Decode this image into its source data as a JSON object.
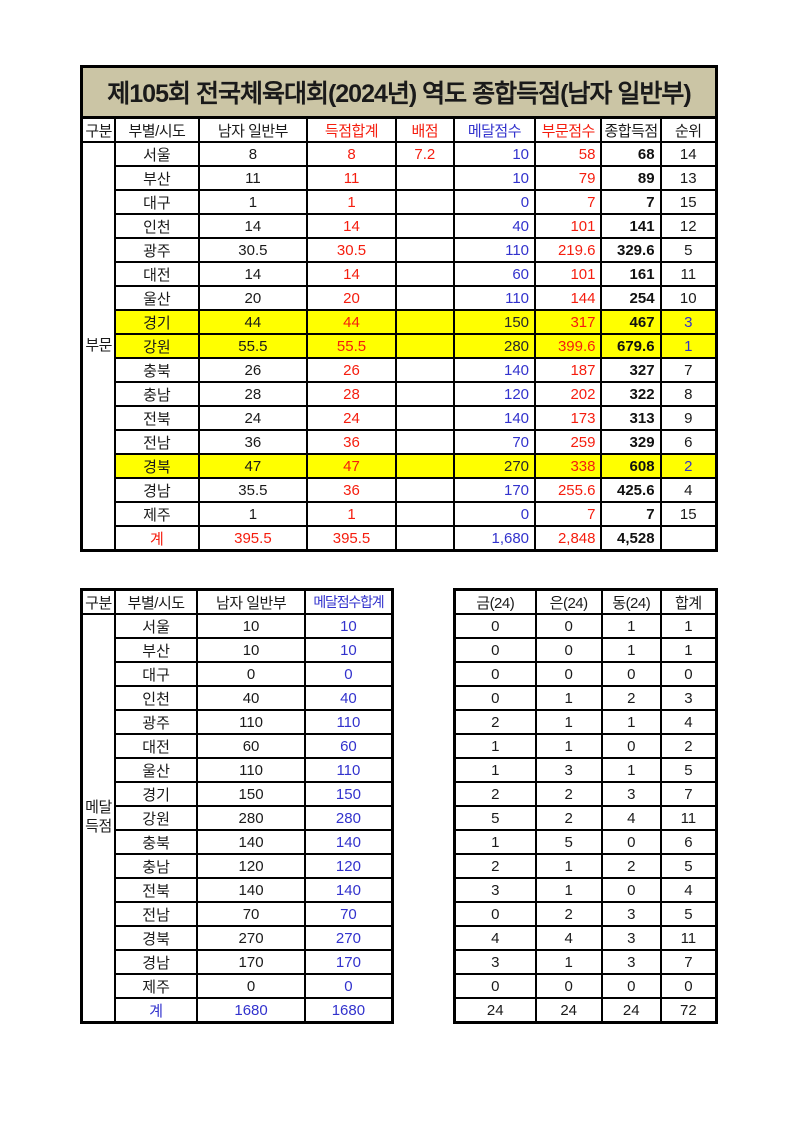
{
  "title": "제105회 전국체육대회(2024년) 역도 종합득점(남자 일반부)",
  "colors": {
    "title_background": "#CBC5A5",
    "accent_red": "#F51D0E",
    "accent_blue": "#3232CD",
    "row_highlight_yellow": "#FFFF00"
  },
  "table1": {
    "group_label": "부문",
    "headers": [
      {
        "label": "구분",
        "color": ""
      },
      {
        "label": "부별/시도",
        "color": ""
      },
      {
        "label": "남자 일반부",
        "color": ""
      },
      {
        "label": "득점합계",
        "color": "red"
      },
      {
        "label": "배점",
        "color": "red"
      },
      {
        "label": "메달점수",
        "color": "blue"
      },
      {
        "label": "부문점수",
        "color": "red"
      },
      {
        "label": "종합득점",
        "color": ""
      },
      {
        "label": "순위",
        "color": ""
      }
    ],
    "rows": [
      {
        "sido": "서울",
        "mens": "8",
        "score_sum": "8",
        "baejeom": "7.2",
        "medal": "10",
        "bumun": "58",
        "total": "68",
        "rank": "14",
        "highlight": false
      },
      {
        "sido": "부산",
        "mens": "11",
        "score_sum": "11",
        "baejeom": "",
        "medal": "10",
        "bumun": "79",
        "total": "89",
        "rank": "13",
        "highlight": false
      },
      {
        "sido": "대구",
        "mens": "1",
        "score_sum": "1",
        "baejeom": "",
        "medal": "0",
        "bumun": "7",
        "total": "7",
        "rank": "15",
        "highlight": false
      },
      {
        "sido": "인천",
        "mens": "14",
        "score_sum": "14",
        "baejeom": "",
        "medal": "40",
        "bumun": "101",
        "total": "141",
        "rank": "12",
        "highlight": false
      },
      {
        "sido": "광주",
        "mens": "30.5",
        "score_sum": "30.5",
        "baejeom": "",
        "medal": "110",
        "bumun": "219.6",
        "total": "329.6",
        "rank": "5",
        "highlight": false
      },
      {
        "sido": "대전",
        "mens": "14",
        "score_sum": "14",
        "baejeom": "",
        "medal": "60",
        "bumun": "101",
        "total": "161",
        "rank": "11",
        "highlight": false
      },
      {
        "sido": "울산",
        "mens": "20",
        "score_sum": "20",
        "baejeom": "",
        "medal": "110",
        "bumun": "144",
        "total": "254",
        "rank": "10",
        "highlight": false
      },
      {
        "sido": "경기",
        "mens": "44",
        "score_sum": "44",
        "baejeom": "",
        "medal": "150",
        "bumun": "317",
        "total": "467",
        "rank": "3",
        "highlight": true
      },
      {
        "sido": "강원",
        "mens": "55.5",
        "score_sum": "55.5",
        "baejeom": "",
        "medal": "280",
        "bumun": "399.6",
        "total": "679.6",
        "rank": "1",
        "highlight": true
      },
      {
        "sido": "충북",
        "mens": "26",
        "score_sum": "26",
        "baejeom": "",
        "medal": "140",
        "bumun": "187",
        "total": "327",
        "rank": "7",
        "highlight": false
      },
      {
        "sido": "충남",
        "mens": "28",
        "score_sum": "28",
        "baejeom": "",
        "medal": "120",
        "bumun": "202",
        "total": "322",
        "rank": "8",
        "highlight": false
      },
      {
        "sido": "전북",
        "mens": "24",
        "score_sum": "24",
        "baejeom": "",
        "medal": "140",
        "bumun": "173",
        "total": "313",
        "rank": "9",
        "highlight": false
      },
      {
        "sido": "전남",
        "mens": "36",
        "score_sum": "36",
        "baejeom": "",
        "medal": "70",
        "bumun": "259",
        "total": "329",
        "rank": "6",
        "highlight": false
      },
      {
        "sido": "경북",
        "mens": "47",
        "score_sum": "47",
        "baejeom": "",
        "medal": "270",
        "bumun": "338",
        "total": "608",
        "rank": "2",
        "highlight": true
      },
      {
        "sido": "경남",
        "mens": "35.5",
        "score_sum": "36",
        "baejeom": "",
        "medal": "170",
        "bumun": "255.6",
        "total": "425.6",
        "rank": "4",
        "highlight": false
      },
      {
        "sido": "제주",
        "mens": "1",
        "score_sum": "1",
        "baejeom": "",
        "medal": "0",
        "bumun": "7",
        "total": "7",
        "rank": "15",
        "highlight": false
      }
    ],
    "total_row": {
      "sido": "계",
      "mens": "395.5",
      "score_sum": "395.5",
      "baejeom": "",
      "medal": "1,680",
      "bumun": "2,848",
      "total": "4,528",
      "rank": ""
    }
  },
  "table2": {
    "group_label_lines": [
      "메달",
      "득점"
    ],
    "headers": [
      {
        "label": "구분",
        "color": ""
      },
      {
        "label": "부별/시도",
        "color": ""
      },
      {
        "label": "남자 일반부",
        "color": ""
      },
      {
        "label": "메달점수합계",
        "color": "blue",
        "tight": true
      }
    ],
    "rows": [
      {
        "sido": "서울",
        "mens": "10",
        "medal_sum": "10"
      },
      {
        "sido": "부산",
        "mens": "10",
        "medal_sum": "10"
      },
      {
        "sido": "대구",
        "mens": "0",
        "medal_sum": "0"
      },
      {
        "sido": "인천",
        "mens": "40",
        "medal_sum": "40"
      },
      {
        "sido": "광주",
        "mens": "110",
        "medal_sum": "110"
      },
      {
        "sido": "대전",
        "mens": "60",
        "medal_sum": "60"
      },
      {
        "sido": "울산",
        "mens": "110",
        "medal_sum": "110"
      },
      {
        "sido": "경기",
        "mens": "150",
        "medal_sum": "150"
      },
      {
        "sido": "강원",
        "mens": "280",
        "medal_sum": "280"
      },
      {
        "sido": "충북",
        "mens": "140",
        "medal_sum": "140"
      },
      {
        "sido": "충남",
        "mens": "120",
        "medal_sum": "120"
      },
      {
        "sido": "전북",
        "mens": "140",
        "medal_sum": "140"
      },
      {
        "sido": "전남",
        "mens": "70",
        "medal_sum": "70"
      },
      {
        "sido": "경북",
        "mens": "270",
        "medal_sum": "270"
      },
      {
        "sido": "경남",
        "mens": "170",
        "medal_sum": "170"
      },
      {
        "sido": "제주",
        "mens": "0",
        "medal_sum": "0"
      }
    ],
    "total_row": {
      "sido": "계",
      "mens": "1680",
      "medal_sum": "1680"
    }
  },
  "table3": {
    "headers": [
      {
        "label": "금(24)"
      },
      {
        "label": "은(24)"
      },
      {
        "label": "동(24)"
      },
      {
        "label": "합계"
      }
    ],
    "rows": [
      {
        "gold": "0",
        "silver": "0",
        "bronze": "1",
        "total": "1"
      },
      {
        "gold": "0",
        "silver": "0",
        "bronze": "1",
        "total": "1"
      },
      {
        "gold": "0",
        "silver": "0",
        "bronze": "0",
        "total": "0"
      },
      {
        "gold": "0",
        "silver": "1",
        "bronze": "2",
        "total": "3"
      },
      {
        "gold": "2",
        "silver": "1",
        "bronze": "1",
        "total": "4"
      },
      {
        "gold": "1",
        "silver": "1",
        "bronze": "0",
        "total": "2"
      },
      {
        "gold": "1",
        "silver": "3",
        "bronze": "1",
        "total": "5"
      },
      {
        "gold": "2",
        "silver": "2",
        "bronze": "3",
        "total": "7"
      },
      {
        "gold": "5",
        "silver": "2",
        "bronze": "4",
        "total": "11"
      },
      {
        "gold": "1",
        "silver": "5",
        "bronze": "0",
        "total": "6"
      },
      {
        "gold": "2",
        "silver": "1",
        "bronze": "2",
        "total": "5"
      },
      {
        "gold": "3",
        "silver": "1",
        "bronze": "0",
        "total": "4"
      },
      {
        "gold": "0",
        "silver": "2",
        "bronze": "3",
        "total": "5"
      },
      {
        "gold": "4",
        "silver": "4",
        "bronze": "3",
        "total": "11"
      },
      {
        "gold": "3",
        "silver": "1",
        "bronze": "3",
        "total": "7"
      },
      {
        "gold": "0",
        "silver": "0",
        "bronze": "0",
        "total": "0"
      }
    ],
    "total_row": {
      "gold": "24",
      "silver": "24",
      "bronze": "24",
      "total": "72"
    }
  }
}
